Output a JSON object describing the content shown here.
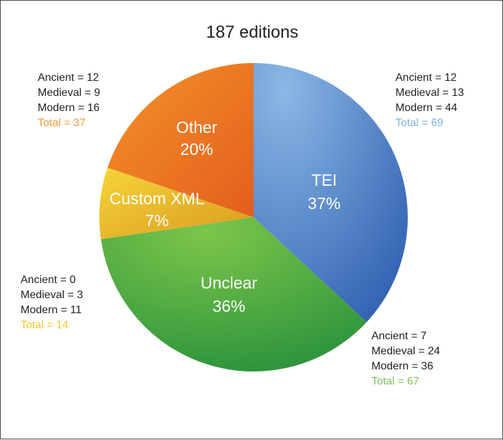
{
  "chart_data": {
    "type": "pie",
    "title": "187 editions",
    "slices": [
      {
        "label": "TEI",
        "percent_label": "37%",
        "value": 69,
        "color": "#4d86cf"
      },
      {
        "label": "Unclear",
        "percent_label": "36%",
        "value": 67,
        "color": "#3fa13a"
      },
      {
        "label": "Custom XML",
        "percent_label": "7%",
        "value": 14,
        "color": "#e3b025"
      },
      {
        "label": "Other",
        "percent_label": "20%",
        "value": 37,
        "color": "#ee7024"
      }
    ],
    "annotations": [
      {
        "slice": "TEI",
        "lines": [
          "Ancient = 12",
          "Medieval = 13",
          "Modern = 44"
        ],
        "total": "Total = 69",
        "total_color": "#7fb0e0"
      },
      {
        "slice": "Unclear",
        "lines": [
          "Ancient = 7",
          "Medieval = 24",
          "Modern = 36"
        ],
        "total": "Total = 67",
        "total_color": "#7cc25a"
      },
      {
        "slice": "Custom XML",
        "lines": [
          "Ancient = 0",
          "Medieval = 3",
          "Modern = 11"
        ],
        "total": "Total = 14",
        "total_color": "#f0c825"
      },
      {
        "slice": "Other",
        "lines": [
          "Ancient = 12",
          "Medieval = 9",
          "Modern = 16"
        ],
        "total": "Total = 37",
        "total_color": "#f39a3a"
      }
    ]
  }
}
